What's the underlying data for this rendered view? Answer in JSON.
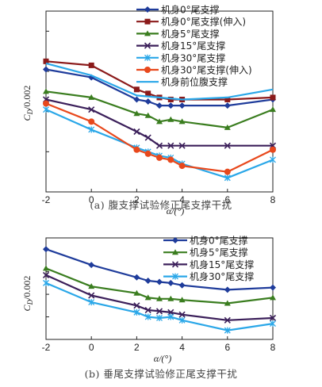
{
  "chart_data": [
    {
      "type": "line",
      "caption": "(a) 腹支撑试验修正尾支撑干扰",
      "xlabel": "α/(°)",
      "ylabel": "CD/0.002",
      "ylabel_main": "C",
      "ylabel_sub": "D",
      "ylabel_tail": "/0.002",
      "x_ticks": [
        "-2",
        "0",
        "2",
        "4",
        "6",
        "8"
      ],
      "xlim": [
        -2,
        8
      ],
      "ylim": [
        0,
        4.5
      ],
      "grid": false,
      "legend_position": "top-right",
      "series": [
        {
          "name": "机身0°尾支撑",
          "color": "#1f3c9b",
          "marker": "diamond",
          "x": [
            -2,
            0,
            2,
            2.5,
            3,
            3.5,
            4,
            6,
            8
          ],
          "y": [
            3.05,
            2.85,
            2.3,
            2.25,
            2.15,
            2.15,
            2.15,
            2.15,
            2.3
          ]
        },
        {
          "name": "机身0°尾支撑(伸入)",
          "color": "#8b1a1a",
          "marker": "square",
          "x": [
            -2,
            0,
            2,
            2.5,
            3,
            3.5,
            4,
            6,
            8
          ],
          "y": [
            3.25,
            3.15,
            2.55,
            2.45,
            2.35,
            2.3,
            2.3,
            2.3,
            2.35
          ]
        },
        {
          "name": "机身5°尾支撑",
          "color": "#3a7d1f",
          "marker": "triangle",
          "x": [
            -2,
            0,
            2,
            2.5,
            3,
            3.5,
            4,
            6,
            8
          ],
          "y": [
            2.5,
            2.35,
            1.95,
            1.9,
            1.75,
            1.8,
            1.75,
            1.6,
            2.05
          ]
        },
        {
          "name": "机身15°尾支撑",
          "color": "#3b1f5a",
          "marker": "x",
          "x": [
            -2,
            0,
            2,
            2.5,
            3,
            3.5,
            4,
            6,
            8
          ],
          "y": [
            2.3,
            2.05,
            1.5,
            1.35,
            1.15,
            1.15,
            1.15,
            1.15,
            1.15
          ]
        },
        {
          "name": "机身30°尾支撑",
          "color": "#2aa7e8",
          "marker": "star",
          "x": [
            -2,
            0,
            2,
            2.5,
            3,
            3.5,
            4,
            6,
            8
          ],
          "y": [
            2.05,
            1.55,
            1.1,
            1.0,
            0.9,
            0.85,
            0.7,
            0.35,
            0.8
          ]
        },
        {
          "name": "机身30°尾支撑(伸入)",
          "color": "#e8481c",
          "marker": "circle",
          "x": [
            -2,
            0,
            2,
            2.5,
            3,
            3.5,
            4,
            6,
            8
          ],
          "y": [
            2.2,
            1.75,
            1.05,
            0.95,
            0.85,
            0.8,
            0.65,
            0.5,
            1.05
          ]
        },
        {
          "name": "机身前位腹支撑",
          "color": "#2aa7e8",
          "marker": "none",
          "x": [
            -2,
            0,
            2,
            4,
            6,
            8
          ],
          "y": [
            3.2,
            2.9,
            2.4,
            2.3,
            2.35,
            2.55
          ]
        }
      ]
    },
    {
      "type": "line",
      "caption": "(b) 垂尾支撑试验修正尾支撑干扰",
      "xlabel": "α/(°)",
      "ylabel": "CD/0.002",
      "ylabel_main": "C",
      "ylabel_sub": "D",
      "ylabel_tail": "/0.002",
      "x_ticks": [
        "-2",
        "0",
        "2",
        "4",
        "6",
        "8"
      ],
      "xlim": [
        -2,
        8
      ],
      "ylim": [
        0,
        4.5
      ],
      "grid": false,
      "legend_position": "top-right",
      "series": [
        {
          "name": "机身0°尾支撑",
          "color": "#1f3c9b",
          "marker": "diamond",
          "x": [
            -2,
            0,
            2,
            2.5,
            3,
            3.5,
            4,
            6,
            8
          ],
          "y": [
            4.0,
            3.3,
            2.75,
            2.6,
            2.55,
            2.5,
            2.4,
            2.2,
            2.3
          ]
        },
        {
          "name": "机身5°尾支撑",
          "color": "#3a7d1f",
          "marker": "triangle",
          "x": [
            -2,
            0,
            2,
            2.5,
            3,
            3.5,
            4,
            6,
            8
          ],
          "y": [
            3.15,
            2.35,
            2.05,
            1.85,
            1.8,
            1.8,
            1.75,
            1.6,
            1.85
          ]
        },
        {
          "name": "机身15°尾支撑",
          "color": "#3b1f5a",
          "marker": "x",
          "x": [
            -2,
            0,
            2,
            2.5,
            3,
            3.5,
            4,
            6,
            8
          ],
          "y": [
            2.85,
            1.95,
            1.5,
            1.3,
            1.25,
            1.2,
            1.1,
            0.85,
            0.95
          ]
        },
        {
          "name": "机身30°尾支撑",
          "color": "#2aa7e8",
          "marker": "star",
          "x": [
            -2,
            0,
            2,
            2.5,
            3,
            3.5,
            4,
            6,
            8
          ],
          "y": [
            2.5,
            1.65,
            1.2,
            1.0,
            0.95,
            1.0,
            0.85,
            0.4,
            0.7
          ]
        }
      ]
    }
  ]
}
